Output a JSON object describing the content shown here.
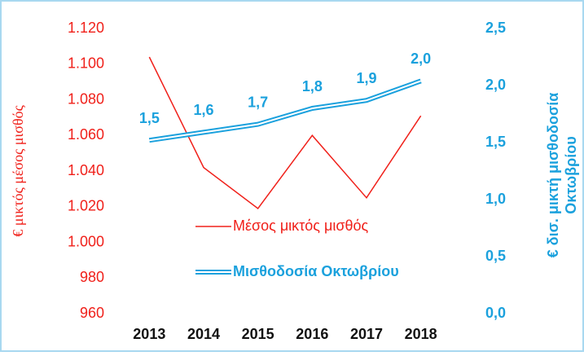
{
  "chart_data": {
    "type": "line",
    "ylabel": "€ μικτός μέσος μισθός",
    "y2label": [
      "€ δισ. μικτή μισθοδοσία",
      "Οκτωβρίου"
    ],
    "categories": [
      "2013",
      "2014",
      "2015",
      "2016",
      "2017",
      "2018"
    ],
    "series": [
      {
        "name": "Μέσος μικτός μισθός",
        "color": "#f0201a",
        "values": [
          1104,
          1042,
          1019,
          1060,
          1025,
          1071
        ]
      },
      {
        "name": "Μισθοδοσία Οκτωβρίου",
        "color": "#1ba1dd",
        "axis": "y2",
        "values": [
          1.52,
          1.59,
          1.66,
          1.8,
          1.87,
          2.04
        ],
        "value_labels": [
          "1,5",
          "1,6",
          "1,7",
          "1,8",
          "1,9",
          "2,0"
        ]
      }
    ],
    "ylim": [
      960,
      1120
    ],
    "yticks": [
      960,
      980,
      {
        "value": 1000,
        "label": "1.000"
      },
      {
        "value": 1020,
        "label": "1.020"
      },
      {
        "value": 1040,
        "label": "1.040"
      },
      {
        "value": 1060,
        "label": "1.060"
      },
      {
        "value": 1080,
        "label": "1.080"
      },
      {
        "value": 1100,
        "label": "1.100"
      },
      {
        "value": 1120,
        "label": "1.120"
      }
    ],
    "y2lim": [
      0,
      2.5
    ],
    "y2ticks": [
      {
        "value": 0,
        "label": "0,0"
      },
      {
        "value": 0.5,
        "label": "0,5"
      },
      {
        "value": 1,
        "label": "1,0"
      },
      {
        "value": 1.5,
        "label": "1,5"
      },
      {
        "value": 2,
        "label": "2,0"
      },
      {
        "value": 2.5,
        "label": "2,5"
      }
    ],
    "grid": false
  }
}
